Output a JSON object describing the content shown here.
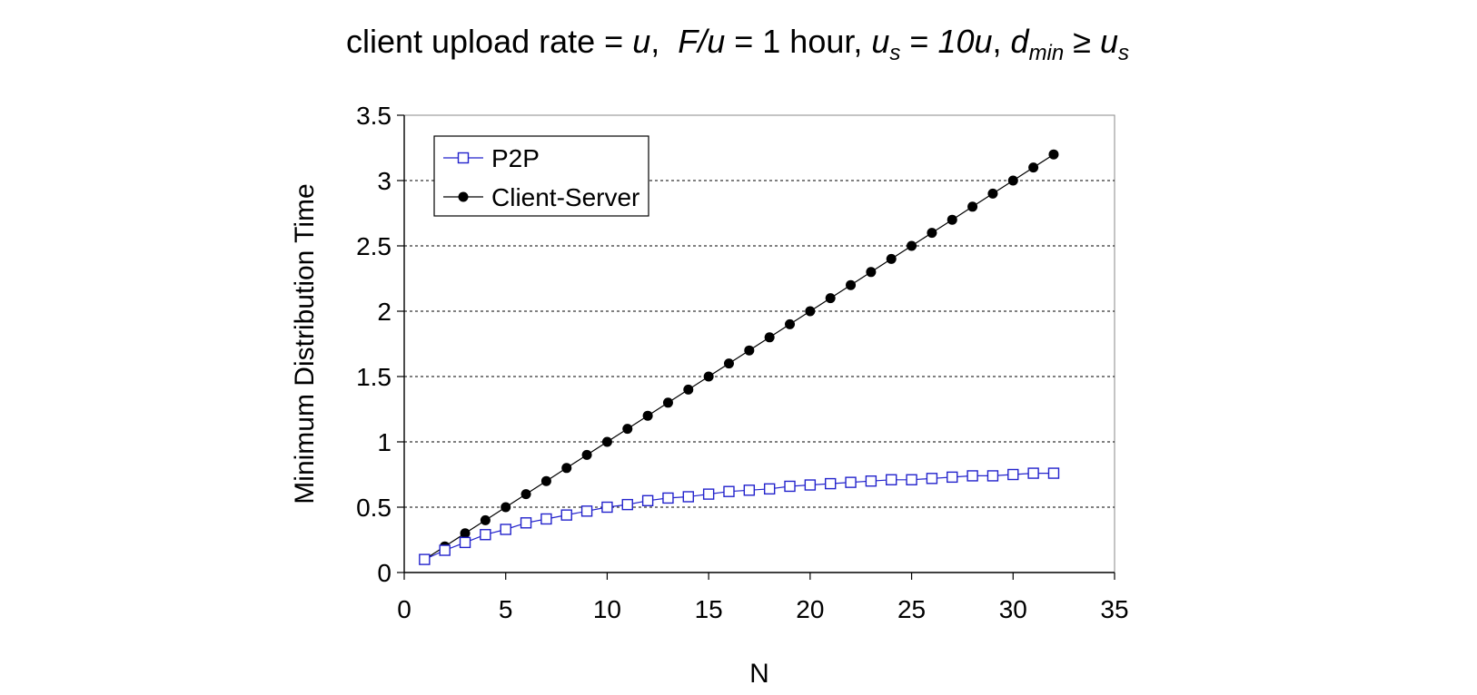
{
  "title": {
    "p1": "client upload rate = ",
    "u1": "u",
    "p2": ",  ",
    "fu": "F/u",
    "p3": " = 1 hour,  ",
    "us_u": "u",
    "us_s": "s",
    "p4": " = ",
    "ten_u": "10u",
    "p5": ",  ",
    "d": "d",
    "min": "min",
    "ge": " ≥ ",
    "us2_u": "u",
    "us2_s": "s"
  },
  "colors": {
    "p2p": "#2222cc",
    "client_server": "#000000",
    "grid": "#000000"
  },
  "chart_data": {
    "type": "line",
    "xlabel": "N",
    "ylabel": "Minimum Distribution Time",
    "xlim": [
      0,
      35
    ],
    "ylim": [
      0,
      3.5
    ],
    "xticks": [
      "0",
      "5",
      "10",
      "15",
      "20",
      "25",
      "30",
      "35"
    ],
    "yticks": [
      "0",
      "0.5",
      "1",
      "1.5",
      "2",
      "2.5",
      "3",
      "3.5"
    ],
    "grid": "horizontal dashed",
    "legend_position": "top-left",
    "series": [
      {
        "name": "P2P",
        "marker": "open-square",
        "x": [
          1,
          2,
          3,
          4,
          5,
          6,
          7,
          8,
          9,
          10,
          11,
          12,
          13,
          14,
          15,
          16,
          17,
          18,
          19,
          20,
          21,
          22,
          23,
          24,
          25,
          26,
          27,
          28,
          29,
          30,
          31,
          32
        ],
        "values": [
          0.1,
          0.17,
          0.23,
          0.29,
          0.33,
          0.38,
          0.41,
          0.44,
          0.47,
          0.5,
          0.52,
          0.55,
          0.57,
          0.58,
          0.6,
          0.62,
          0.63,
          0.64,
          0.66,
          0.67,
          0.68,
          0.69,
          0.7,
          0.71,
          0.71,
          0.72,
          0.73,
          0.74,
          0.74,
          0.75,
          0.76,
          0.76
        ]
      },
      {
        "name": "Client-Server",
        "marker": "filled-circle",
        "x": [
          1,
          2,
          3,
          4,
          5,
          6,
          7,
          8,
          9,
          10,
          11,
          12,
          13,
          14,
          15,
          16,
          17,
          18,
          19,
          20,
          21,
          22,
          23,
          24,
          25,
          26,
          27,
          28,
          29,
          30,
          31,
          32
        ],
        "values": [
          0.1,
          0.2,
          0.3,
          0.4,
          0.5,
          0.6,
          0.7,
          0.8,
          0.9,
          1.0,
          1.1,
          1.2,
          1.3,
          1.4,
          1.5,
          1.6,
          1.7,
          1.8,
          1.9,
          2.0,
          2.1,
          2.2,
          2.3,
          2.4,
          2.5,
          2.6,
          2.7,
          2.8,
          2.9,
          3.0,
          3.1,
          3.2
        ]
      }
    ]
  }
}
